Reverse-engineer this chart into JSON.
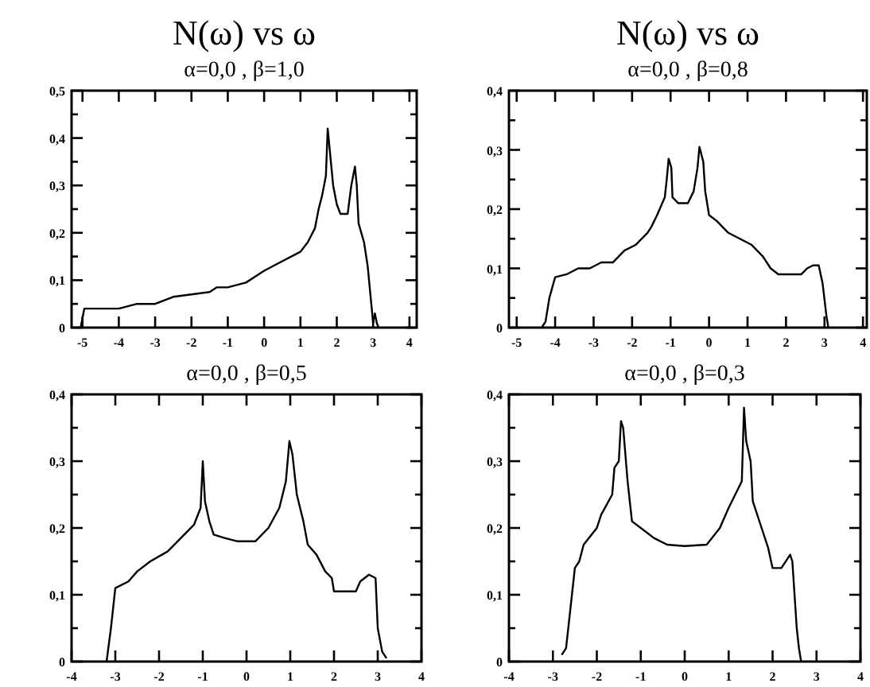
{
  "chart_data": [
    {
      "type": "line",
      "title": "N(ω) vs ω",
      "subtitle": "α=0,0 , β=1,0",
      "xlim": [
        -5.3,
        4.2
      ],
      "xticks": [
        -5,
        -4,
        -3,
        -2,
        -1,
        0,
        1,
        2,
        3,
        4
      ],
      "ylim": [
        0,
        0.5
      ],
      "yticks": [
        {
          "value": 0,
          "label": "0"
        },
        {
          "value": 0.05,
          "label": null
        },
        {
          "value": 0.1,
          "label": "0,1"
        },
        {
          "value": 0.15,
          "label": null
        },
        {
          "value": 0.2,
          "label": "0,2"
        },
        {
          "value": 0.25,
          "label": null
        },
        {
          "value": 0.3,
          "label": "0,3"
        },
        {
          "value": 0.35,
          "label": null
        },
        {
          "value": 0.4,
          "label": "0,4"
        },
        {
          "value": 0.45,
          "label": null
        },
        {
          "value": 0.5,
          "label": "0,5"
        }
      ],
      "grid": false,
      "marker": "none",
      "line_style": "solid",
      "series": [
        {
          "color": "#000000",
          "x": [
            -5.05,
            -4.95,
            -4.5,
            -4,
            -3.5,
            -3,
            -2.5,
            -2,
            -1.5,
            -1.3,
            -1,
            -0.5,
            -0.2,
            0,
            0.5,
            1,
            1.2,
            1.4,
            1.5,
            1.6,
            1.7,
            1.75,
            1.8,
            1.9,
            2,
            2.1,
            2.3,
            2.4,
            2.5,
            2.55,
            2.6,
            2.75,
            2.85,
            2.95,
            3,
            3.05,
            3.1,
            3.15
          ],
          "values": [
            0,
            0.04,
            0.04,
            0.04,
            0.05,
            0.05,
            0.065,
            0.07,
            0.075,
            0.085,
            0.085,
            0.095,
            0.11,
            0.12,
            0.14,
            0.16,
            0.18,
            0.21,
            0.25,
            0.28,
            0.32,
            0.42,
            0.38,
            0.3,
            0.26,
            0.24,
            0.24,
            0.3,
            0.34,
            0.3,
            0.22,
            0.18,
            0.13,
            0.05,
            0.01,
            0.03,
            0.01,
            0
          ]
        }
      ]
    },
    {
      "type": "line",
      "title": "N(ω) vs ω",
      "subtitle": "α=0,0 , β=0,8",
      "xlim": [
        -5.2,
        4.1
      ],
      "xticks": [
        -5,
        -4,
        -3,
        -2,
        -1,
        0,
        1,
        2,
        3,
        4
      ],
      "ylim": [
        0,
        0.4
      ],
      "yticks": [
        {
          "value": 0,
          "label": "0"
        },
        {
          "value": 0.05,
          "label": null
        },
        {
          "value": 0.1,
          "label": "0,1"
        },
        {
          "value": 0.15,
          "label": null
        },
        {
          "value": 0.2,
          "label": "0,2"
        },
        {
          "value": 0.25,
          "label": null
        },
        {
          "value": 0.3,
          "label": "0,3"
        },
        {
          "value": 0.35,
          "label": null
        },
        {
          "value": 0.4,
          "label": "0,4"
        }
      ],
      "grid": false,
      "marker": "none",
      "line_style": "solid",
      "series": [
        {
          "color": "#000000",
          "x": [
            -4.35,
            -4.25,
            -4.15,
            -4,
            -3.7,
            -3.4,
            -3.1,
            -2.8,
            -2.5,
            -2.2,
            -1.9,
            -1.6,
            -1.5,
            -1.35,
            -1.15,
            -1.1,
            -1.05,
            -0.98,
            -0.95,
            -0.8,
            -0.55,
            -0.4,
            -0.3,
            -0.25,
            -0.15,
            -0.1,
            0,
            0.2,
            0.5,
            0.8,
            1.1,
            1.4,
            1.6,
            1.8,
            2.4,
            2.55,
            2.7,
            2.85,
            2.95,
            3.05,
            3.1
          ],
          "values": [
            0,
            0.01,
            0.05,
            0.085,
            0.09,
            0.1,
            0.1,
            0.11,
            0.11,
            0.13,
            0.14,
            0.16,
            0.17,
            0.19,
            0.22,
            0.25,
            0.285,
            0.27,
            0.22,
            0.21,
            0.21,
            0.23,
            0.27,
            0.305,
            0.28,
            0.23,
            0.19,
            0.18,
            0.16,
            0.15,
            0.14,
            0.12,
            0.1,
            0.09,
            0.09,
            0.1,
            0.105,
            0.105,
            0.075,
            0.02,
            0
          ]
        }
      ]
    },
    {
      "type": "line",
      "subtitle": "α=0,0 , β=0,5",
      "xlim": [
        -4,
        4
      ],
      "xticks": [
        -4,
        -3,
        -2,
        -1,
        0,
        1,
        2,
        3,
        4
      ],
      "ylim": [
        0,
        0.4
      ],
      "yticks": [
        {
          "value": 0,
          "label": "0"
        },
        {
          "value": 0.05,
          "label": null
        },
        {
          "value": 0.1,
          "label": "0,1"
        },
        {
          "value": 0.15,
          "label": null
        },
        {
          "value": 0.2,
          "label": "0,2"
        },
        {
          "value": 0.25,
          "label": null
        },
        {
          "value": 0.3,
          "label": "0,3"
        },
        {
          "value": 0.35,
          "label": null
        },
        {
          "value": 0.4,
          "label": "0,4"
        }
      ],
      "grid": false,
      "marker": "none",
      "line_style": "solid",
      "series": [
        {
          "color": "#000000",
          "x": [
            -3.2,
            -3.1,
            -3,
            -2.7,
            -2.5,
            -2.2,
            -1.8,
            -1.5,
            -1.2,
            -1.05,
            -1,
            -0.95,
            -0.85,
            -0.75,
            -0.5,
            -0.2,
            0.2,
            0.5,
            0.75,
            0.9,
            0.98,
            1.05,
            1.15,
            1.3,
            1.4,
            1.6,
            1.8,
            1.95,
            2,
            2.5,
            2.6,
            2.8,
            2.95,
            3,
            3.1,
            3.2
          ],
          "values": [
            0,
            0.05,
            0.11,
            0.12,
            0.135,
            0.15,
            0.165,
            0.185,
            0.205,
            0.23,
            0.3,
            0.24,
            0.21,
            0.19,
            0.185,
            0.18,
            0.18,
            0.2,
            0.23,
            0.27,
            0.33,
            0.31,
            0.25,
            0.21,
            0.175,
            0.16,
            0.135,
            0.125,
            0.105,
            0.105,
            0.12,
            0.13,
            0.125,
            0.05,
            0.015,
            0.005
          ]
        }
      ]
    },
    {
      "type": "line",
      "subtitle": "α=0,0 , β=0,3",
      "xlim": [
        -4,
        4
      ],
      "xticks": [
        -4,
        -3,
        -2,
        -1,
        0,
        1,
        2,
        3,
        4
      ],
      "ylim": [
        0,
        0.4
      ],
      "yticks": [
        {
          "value": 0,
          "label": "0"
        },
        {
          "value": 0.05,
          "label": null
        },
        {
          "value": 0.1,
          "label": "0,1"
        },
        {
          "value": 0.15,
          "label": null
        },
        {
          "value": 0.2,
          "label": "0,2"
        },
        {
          "value": 0.25,
          "label": null
        },
        {
          "value": 0.3,
          "label": "0,3"
        },
        {
          "value": 0.35,
          "label": null
        },
        {
          "value": 0.4,
          "label": "0,4"
        }
      ],
      "grid": false,
      "marker": "none",
      "line_style": "solid",
      "series": [
        {
          "color": "#000000",
          "x": [
            -2.8,
            -2.7,
            -2.6,
            -2.5,
            -2.4,
            -2.3,
            -2,
            -1.9,
            -1.65,
            -1.6,
            -1.5,
            -1.45,
            -1.4,
            -1.3,
            -1.2,
            -1,
            -0.7,
            -0.4,
            0,
            0.5,
            0.8,
            1,
            1.3,
            1.35,
            1.4,
            1.5,
            1.55,
            1.75,
            1.9,
            2,
            2.2,
            2.4,
            2.45,
            2.5,
            2.55,
            2.6,
            2.65
          ],
          "values": [
            0.01,
            0.02,
            0.08,
            0.14,
            0.15,
            0.175,
            0.2,
            0.22,
            0.25,
            0.29,
            0.3,
            0.36,
            0.35,
            0.27,
            0.21,
            0.2,
            0.185,
            0.175,
            0.173,
            0.175,
            0.2,
            0.23,
            0.27,
            0.38,
            0.33,
            0.3,
            0.24,
            0.2,
            0.17,
            0.14,
            0.14,
            0.16,
            0.15,
            0.1,
            0.05,
            0.02,
            0
          ]
        }
      ]
    }
  ]
}
